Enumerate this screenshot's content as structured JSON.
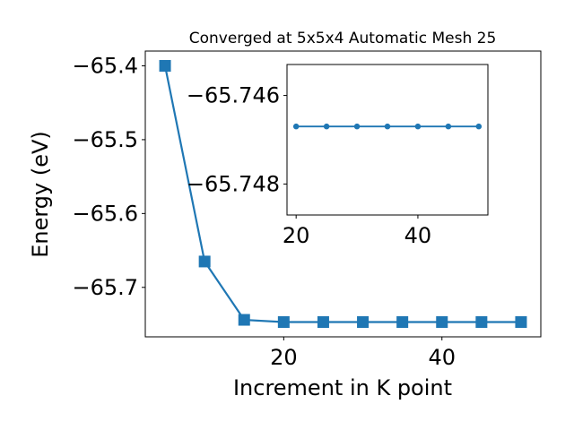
{
  "chart_data": [
    {
      "type": "line",
      "title": "Converged at 5x5x4 Automatic Mesh 25",
      "xlabel": "Increment in K point",
      "ylabel": "Energy (eV)",
      "xlim": [
        2.5,
        52.5
      ],
      "ylim": [
        -65.767,
        -65.38
      ],
      "x_ticks": [
        20,
        40
      ],
      "x_tick_labels": [
        "20",
        "40"
      ],
      "y_ticks": [
        -65.4,
        -65.5,
        -65.6,
        -65.7
      ],
      "y_tick_labels": [
        "−65.4",
        "−65.5",
        "−65.6",
        "−65.7"
      ],
      "marker": "square",
      "color": "#1f77b4",
      "grid": false,
      "series": [
        {
          "x": [
            5,
            10,
            15,
            20,
            25,
            30,
            35,
            40,
            45,
            50
          ],
          "values": [
            -65.4,
            -65.665,
            -65.744,
            -65.747,
            -65.747,
            -65.747,
            -65.747,
            -65.747,
            -65.747,
            -65.747
          ]
        }
      ]
    },
    {
      "type": "line",
      "placement": "inset",
      "title": "",
      "xlabel": "",
      "ylabel": "",
      "xlim": [
        18.5,
        51.5
      ],
      "ylim": [
        -65.7487,
        -65.7453
      ],
      "x_ticks": [
        20,
        40
      ],
      "x_tick_labels": [
        "20",
        "40"
      ],
      "y_ticks": [
        -65.748,
        -65.746
      ],
      "y_tick_labels": [
        "−65.748",
        "−65.746"
      ],
      "marker": "circle",
      "color": "#1f77b4",
      "grid": false,
      "series": [
        {
          "x": [
            20,
            25,
            30,
            35,
            40,
            45,
            50
          ],
          "values": [
            -65.7467,
            -65.7467,
            -65.7467,
            -65.7467,
            -65.7467,
            -65.7467,
            -65.7467
          ]
        }
      ]
    }
  ]
}
